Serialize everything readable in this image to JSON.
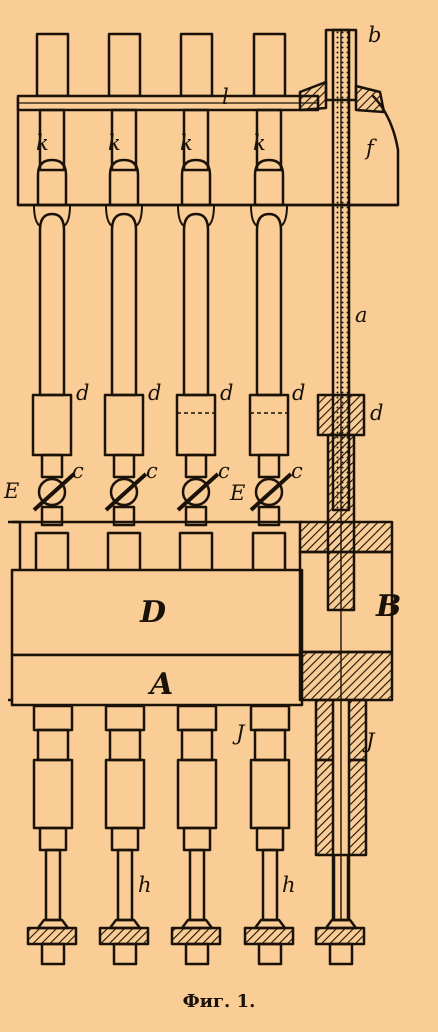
{
  "figure": {
    "caption": "Фиг. 1.",
    "labels": {
      "b": "b",
      "l": "l",
      "f": "f",
      "k": "k",
      "a": "a",
      "d": "d",
      "c": "c",
      "E": "E",
      "D": "D",
      "A": "A",
      "B": "B",
      "J": "J",
      "h": "h"
    }
  },
  "colors": {
    "background": "#f9cd95",
    "ink": "#1a1208"
  }
}
